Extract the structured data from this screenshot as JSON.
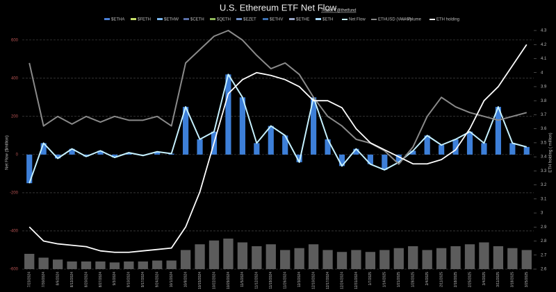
{
  "chart_data": {
    "type": "combo",
    "title": "U.S. Ethereum ETF Net Flow",
    "subtitle": "Trader T@thetfund",
    "y_label": "Net Flow ($million)",
    "y2_label": "ETH holding ( million)",
    "categories": [
      "7/23/2024",
      "7/30/2024",
      "8/6/2024",
      "8/13/2024",
      "8/20/2024",
      "8/27/2024",
      "9/3/2024",
      "9/10/2024",
      "9/17/2024",
      "9/24/2024",
      "10/1/2024",
      "10/8/2024",
      "10/15/2024",
      "10/22/2024",
      "10/29/2024",
      "11/5/2024",
      "11/12/2024",
      "11/19/2024",
      "11/26/2024",
      "12/3/2024",
      "12/10/2024",
      "12/17/2024",
      "12/24/2024",
      "12/31/2024",
      "1/7/2025",
      "1/14/2025",
      "1/21/2025",
      "1/28/2025",
      "2/4/2025",
      "2/11/2025",
      "2/18/2025",
      "2/25/2025",
      "3/4/2025",
      "3/11/2025",
      "3/18/2025",
      "3/25/2025"
    ],
    "legend_items": [
      {
        "name": "$ETHA",
        "color": "#4a7fd6"
      },
      {
        "name": "$FETH",
        "color": "#c8e06a"
      },
      {
        "name": "$ETHW",
        "color": "#7ab8f0"
      },
      {
        "name": "$CETH",
        "color": "#5a6fa8"
      },
      {
        "name": "$QETH",
        "color": "#8fb85a"
      },
      {
        "name": "$EZET",
        "color": "#6f8fc8"
      },
      {
        "name": "$ETHV",
        "color": "#3b6fb0"
      },
      {
        "name": "$ETHE",
        "color": "#9aa6c8"
      },
      {
        "name": "$ETH",
        "color": "#a8d8f8"
      }
    ],
    "series": [
      {
        "name": "Net Flow",
        "color": "#c6f1ff",
        "bar_color": "#3d7fd8",
        "values": [
          -150,
          60,
          -20,
          30,
          -10,
          20,
          -15,
          10,
          -5,
          15,
          5,
          250,
          80,
          120,
          420,
          300,
          60,
          150,
          100,
          -40,
          300,
          80,
          -60,
          30,
          -50,
          -80,
          -40,
          20,
          100,
          50,
          80,
          120,
          60,
          250,
          60,
          40
        ]
      },
      {
        "name": "ETHUSD (VWAP)",
        "color": "#8a8a8a",
        "values": [
          480,
          150,
          200,
          160,
          200,
          170,
          200,
          180,
          180,
          200,
          150,
          480,
          550,
          620,
          650,
          600,
          520,
          450,
          480,
          420,
          300,
          200,
          150,
          80,
          60,
          20,
          -50,
          40,
          200,
          300,
          250,
          220,
          200,
          180,
          200,
          220
        ]
      },
      {
        "name": "Volume",
        "color": "#5c5c5c",
        "values": [
          -520,
          -540,
          -550,
          -560,
          -560,
          -560,
          -565,
          -560,
          -560,
          -555,
          -555,
          -500,
          -470,
          -450,
          -440,
          -460,
          -480,
          -470,
          -500,
          -490,
          -470,
          -500,
          -510,
          -500,
          -510,
          -500,
          -490,
          -480,
          -500,
          -490,
          -480,
          -470,
          -460,
          -480,
          -490,
          -500
        ]
      },
      {
        "name": "ETH holding",
        "color": "#ffffff",
        "axis": "y2",
        "values": [
          2.9,
          2.8,
          2.78,
          2.77,
          2.76,
          2.73,
          2.72,
          2.72,
          2.73,
          2.74,
          2.75,
          2.9,
          3.15,
          3.5,
          3.85,
          3.95,
          4.0,
          3.98,
          3.95,
          3.9,
          3.8,
          3.8,
          3.75,
          3.6,
          3.5,
          3.45,
          3.4,
          3.35,
          3.35,
          3.38,
          3.45,
          3.6,
          3.8,
          3.9,
          4.05,
          4.2
        ]
      }
    ],
    "ylim": [
      -600,
      650
    ],
    "yticks": [
      -600,
      -400,
      -200,
      0,
      200,
      400,
      600
    ],
    "y2lim": [
      2.6,
      4.3
    ],
    "y2ticks": [
      2.6,
      2.7,
      2.8,
      2.9,
      3,
      3.1,
      3.2,
      3.3,
      3.4,
      3.5,
      3.6,
      3.7,
      3.8,
      3.9,
      4,
      4.1,
      4.2,
      4.3
    ],
    "grid": true
  }
}
